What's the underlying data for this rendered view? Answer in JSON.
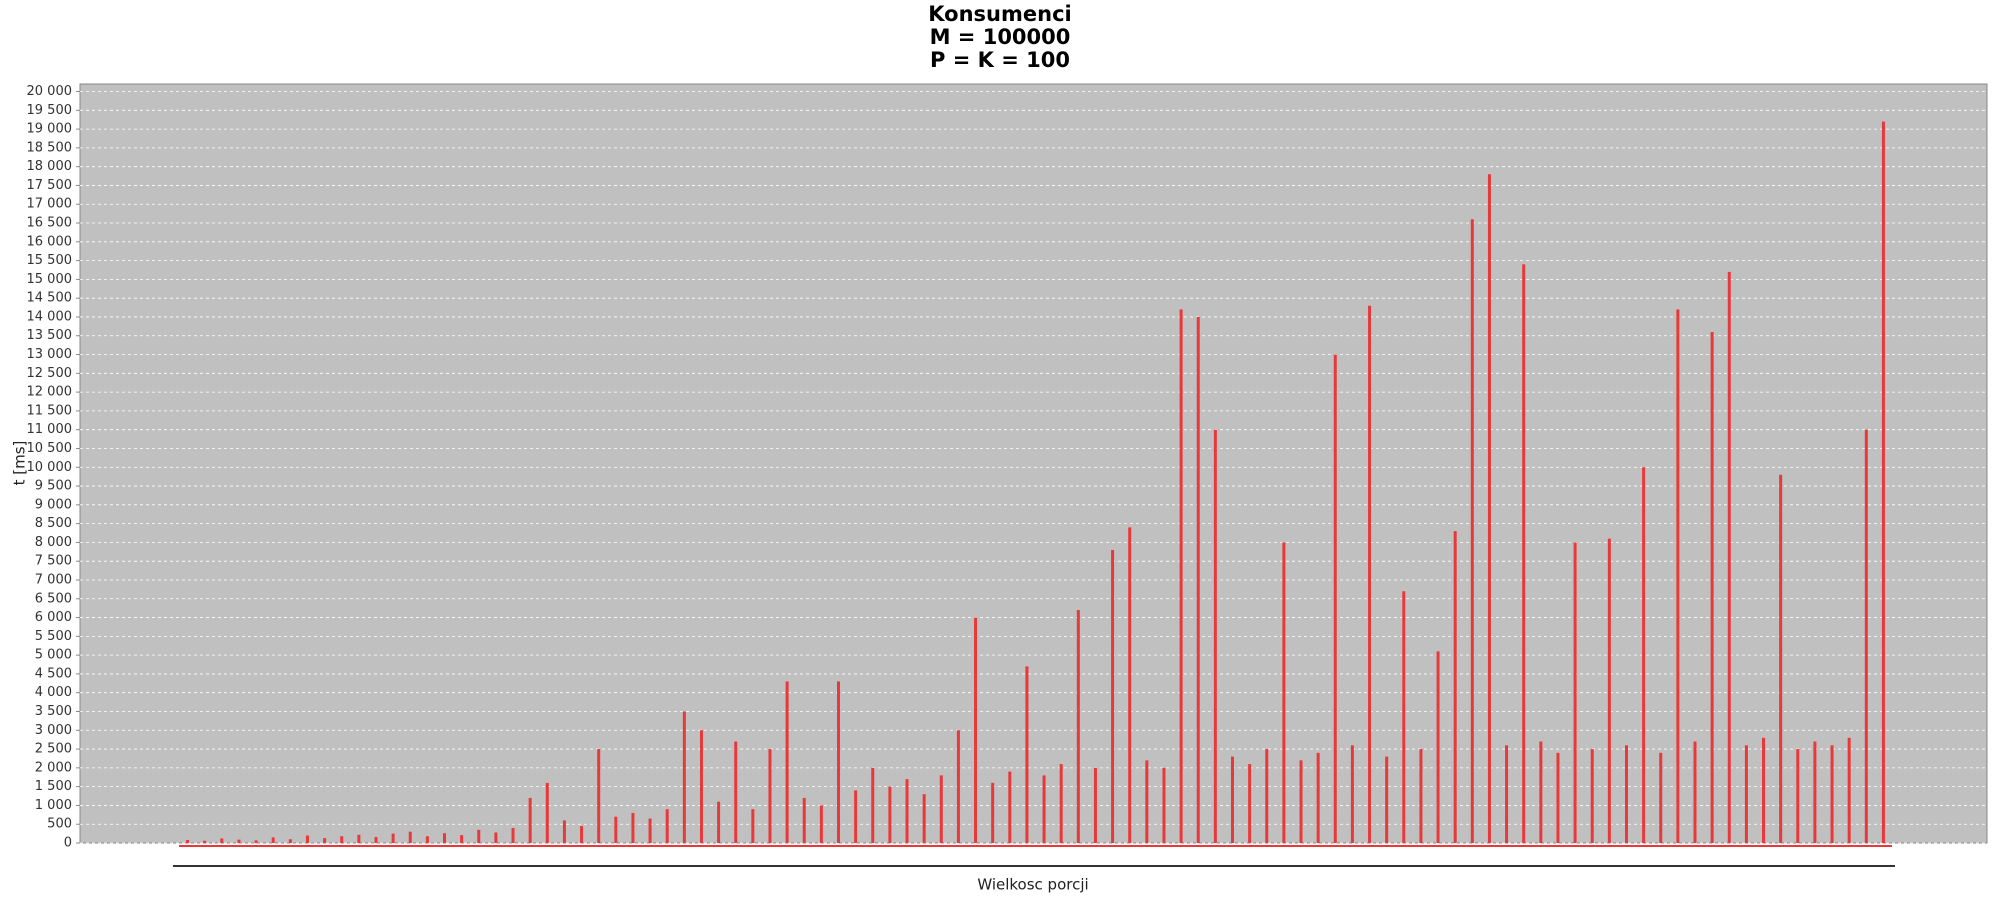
{
  "chart_data": {
    "type": "bar",
    "title_lines": [
      "Konsumenci",
      "M = 100000",
      "P = K = 100"
    ],
    "x_label": "Wielkosc porcji",
    "y_label": "t [ms]",
    "color": "#e8393a",
    "grid": true,
    "categories": [
      null,
      null,
      null,
      null,
      null,
      null,
      null,
      null,
      null,
      null,
      null,
      null,
      null,
      null,
      null,
      null,
      null,
      null,
      null,
      null,
      null,
      null,
      null,
      null,
      null,
      null,
      null,
      null,
      null,
      null,
      null,
      null,
      null,
      null,
      null,
      null,
      null,
      null,
      null,
      null,
      null,
      null,
      null,
      null,
      null,
      null,
      null,
      null,
      null,
      null,
      null,
      null,
      null,
      null,
      null,
      null,
      null,
      null,
      null,
      null,
      null,
      null,
      null,
      null,
      null,
      null,
      null,
      null,
      null,
      null,
      null,
      null,
      null,
      null,
      null,
      null,
      null,
      null,
      null,
      null,
      null,
      null,
      null,
      null,
      null,
      null,
      null,
      null,
      null,
      null,
      null,
      null,
      null,
      null,
      null,
      null,
      null,
      null,
      null,
      null
    ],
    "values": [
      80,
      60,
      120,
      90,
      70,
      150,
      100,
      200,
      130,
      180,
      220,
      160,
      250,
      300,
      180,
      260,
      210,
      350,
      280,
      400,
      1200,
      1600,
      600,
      450,
      2500,
      700,
      800,
      650,
      900,
      3500,
      3000,
      1100,
      2700,
      900,
      2500,
      4300,
      1200,
      1000,
      4300,
      1400,
      2000,
      1500,
      1700,
      1300,
      1800,
      3000,
      6000,
      1600,
      1900,
      4700,
      1800,
      2100,
      6200,
      2000,
      7800,
      8400,
      2200,
      2000,
      14200,
      14000,
      11000,
      2300,
      2100,
      2500,
      8000,
      2200,
      2400,
      13000,
      2600,
      14300,
      2300,
      6700,
      2500,
      5100,
      8300,
      16600,
      17800,
      2600,
      15400,
      2700,
      2400,
      8000,
      2500,
      8100,
      2600,
      10000,
      2400,
      14200,
      2700,
      13600,
      15200,
      2600,
      2800,
      9800,
      2500,
      2700,
      2600,
      2800,
      11000,
      19200
    ],
    "ylim": [
      0,
      20200
    ],
    "yticks": [
      0,
      500,
      {
        "value": 1000,
        "label": "1 000"
      },
      {
        "value": 1500,
        "label": "1 500"
      },
      {
        "value": 2000,
        "label": "2 000"
      },
      {
        "value": 2500,
        "label": "2 500"
      },
      {
        "value": 3000,
        "label": "3 000"
      },
      {
        "value": 3500,
        "label": "3 500"
      },
      {
        "value": 4000,
        "label": "4 000"
      },
      {
        "value": 4500,
        "label": "4 500"
      },
      {
        "value": 5000,
        "label": "5 000"
      },
      {
        "value": 5500,
        "label": "5 500"
      },
      {
        "value": 6000,
        "label": "6 000"
      },
      {
        "value": 6500,
        "label": "6 500"
      },
      {
        "value": 7000,
        "label": "7 000"
      },
      {
        "value": 7500,
        "label": "7 500"
      },
      {
        "value": 8000,
        "label": "8 000"
      },
      {
        "value": 8500,
        "label": "8 500"
      },
      {
        "value": 9000,
        "label": "9 000"
      },
      {
        "value": 9500,
        "label": "9 500"
      },
      {
        "value": 10000,
        "label": "10 000"
      },
      {
        "value": 10500,
        "label": "10 500"
      },
      {
        "value": 11000,
        "label": "11 000"
      },
      {
        "value": 11500,
        "label": "11 500"
      },
      {
        "value": 12000,
        "label": "12 000"
      },
      {
        "value": 12500,
        "label": "12 500"
      },
      {
        "value": 13000,
        "label": "13 000"
      },
      {
        "value": 13500,
        "label": "13 500"
      },
      {
        "value": 14000,
        "label": "14 000"
      },
      {
        "value": 14500,
        "label": "14 500"
      },
      {
        "value": 15000,
        "label": "15 000"
      },
      {
        "value": 15500,
        "label": "15 500"
      },
      {
        "value": 16000,
        "label": "16 000"
      },
      {
        "value": 16500,
        "label": "16 500"
      },
      {
        "value": 17000,
        "label": "17 000"
      },
      {
        "value": 17500,
        "label": "17 500"
      },
      {
        "value": 18000,
        "label": "18 000"
      },
      {
        "value": 18500,
        "label": "18 500"
      },
      {
        "value": 19000,
        "label": "19 000"
      },
      {
        "value": 19500,
        "label": "19 500"
      },
      {
        "value": 20000,
        "label": "20 000"
      }
    ]
  }
}
